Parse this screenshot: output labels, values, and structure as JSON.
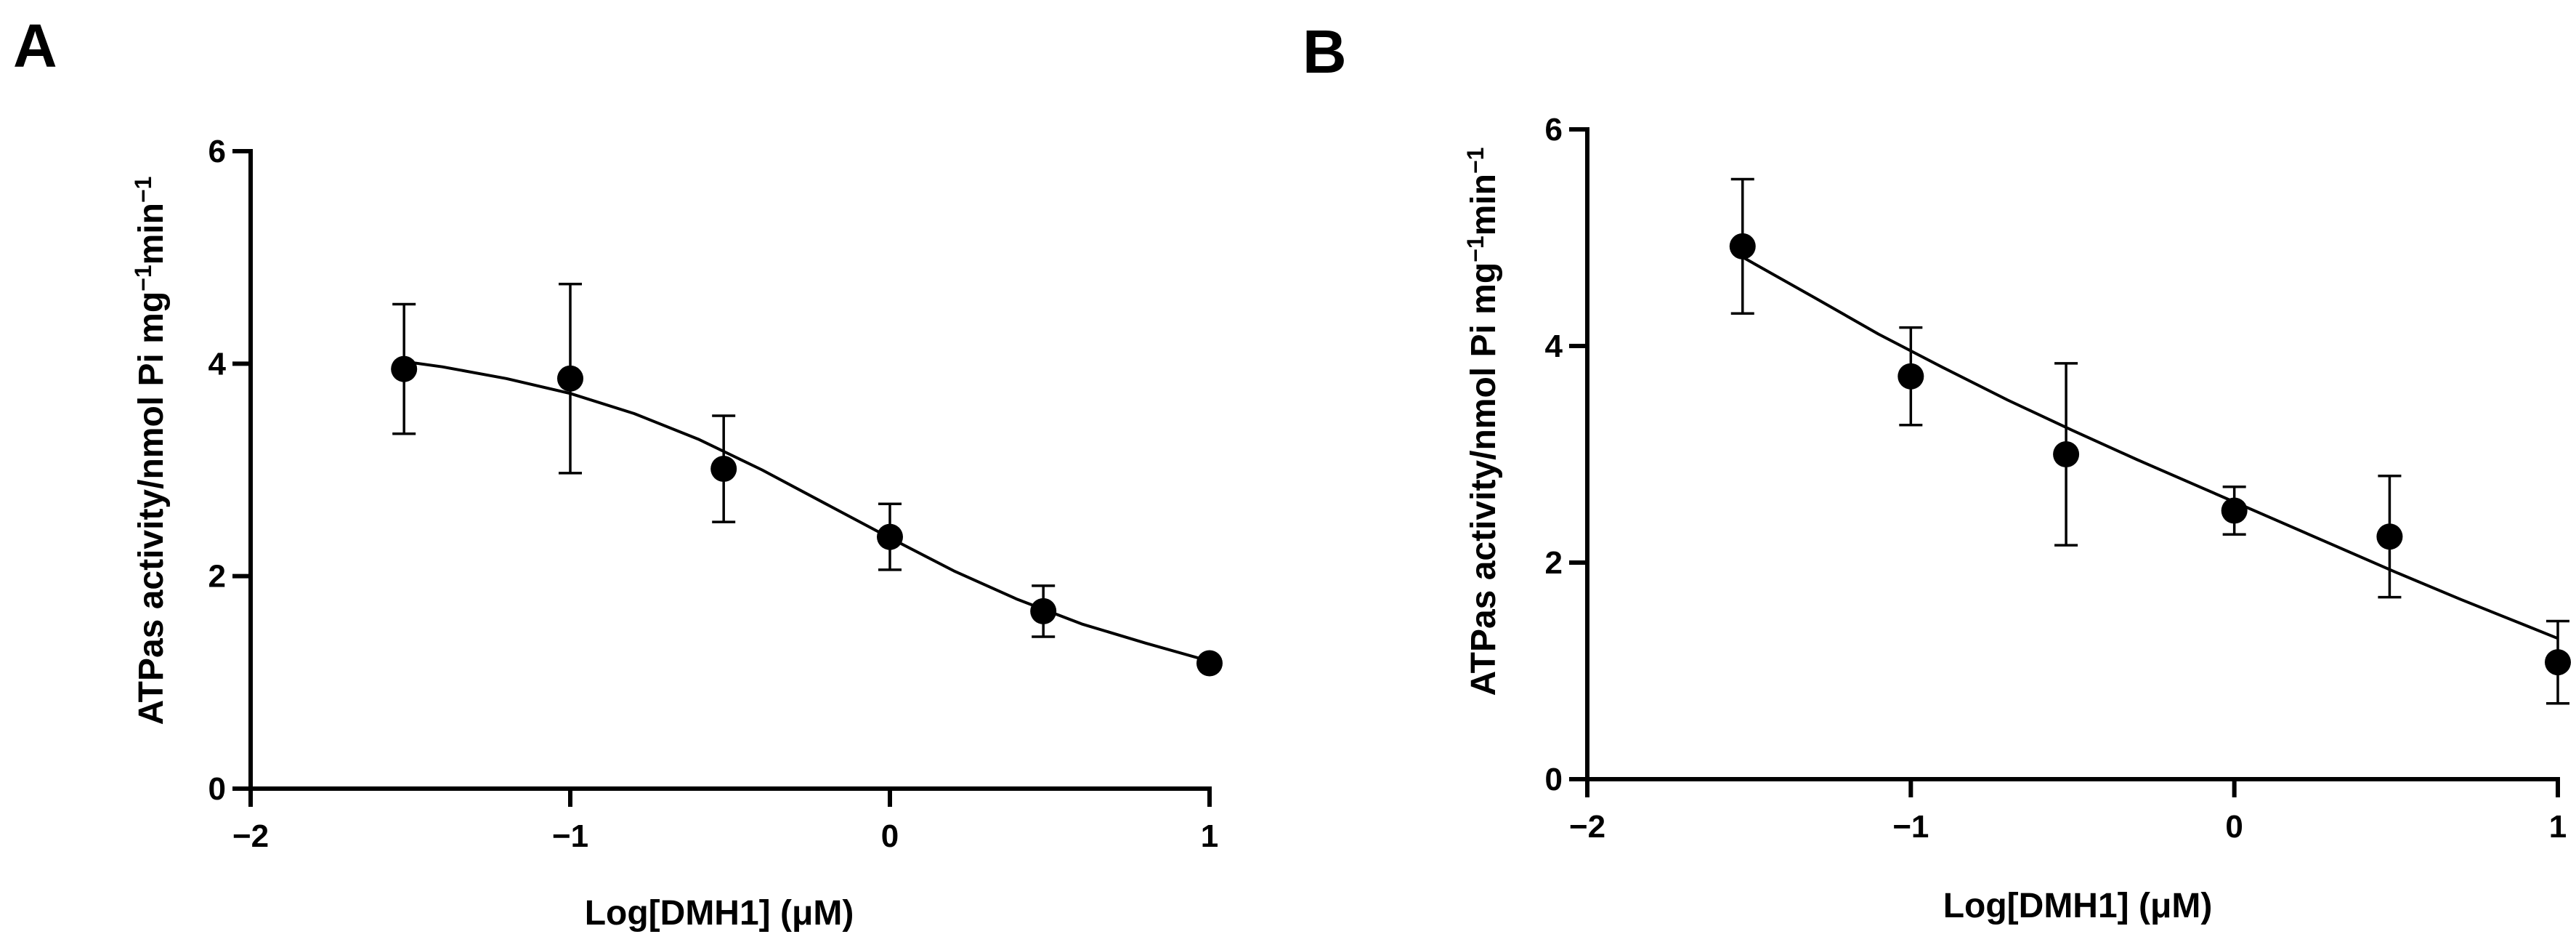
{
  "figure": {
    "panels": [
      "A",
      "B"
    ]
  },
  "colors": {
    "ink": "#000000",
    "background": "#ffffff"
  },
  "chart_data": [
    {
      "id": "A",
      "type": "scatter",
      "panel_label": "A",
      "title": "",
      "xlabel": "Log[DMH1] (μM)",
      "ylabel": "ATPas activity/nmol Pi mg",
      "ylabel_sup1": "−1",
      "ylabel_mid": "min",
      "ylabel_sup2": "−1",
      "xlim": [
        -2,
        1
      ],
      "ylim": [
        0,
        6
      ],
      "xticks": [
        -2,
        -1,
        0,
        1
      ],
      "xtick_labels": [
        "−2",
        "−1",
        "0",
        "1"
      ],
      "yticks": [
        0,
        2,
        4,
        6
      ],
      "ytick_labels": [
        "0",
        "2",
        "4",
        "6"
      ],
      "grid": false,
      "series": [
        {
          "name": "ATPase activity",
          "x": [
            -1.52,
            -1.0,
            -0.52,
            0.0,
            0.48,
            1.0
          ],
          "y": [
            3.95,
            3.86,
            3.01,
            2.37,
            1.67,
            1.18
          ],
          "err_low": [
            0.61,
            0.89,
            0.5,
            0.31,
            0.24,
            0.0
          ],
          "err_high": [
            0.61,
            0.89,
            0.5,
            0.31,
            0.24,
            0.0
          ]
        }
      ],
      "fit": {
        "type": "sigmoidal dose-response",
        "x": [
          -1.52,
          -1.4,
          -1.2,
          -1.0,
          -0.8,
          -0.6,
          -0.4,
          -0.2,
          0.0,
          0.2,
          0.4,
          0.6,
          0.8,
          1.0
        ],
        "y": [
          4.02,
          3.97,
          3.86,
          3.72,
          3.53,
          3.29,
          3.0,
          2.68,
          2.36,
          2.05,
          1.78,
          1.55,
          1.37,
          1.2
        ]
      }
    },
    {
      "id": "B",
      "type": "scatter",
      "panel_label": "B",
      "title": "",
      "xlabel": "Log[DMH1] (μM)",
      "ylabel": "ATPas activity/nmol Pi mg",
      "ylabel_sup1": "−1",
      "ylabel_mid": "min",
      "ylabel_sup2": "−1",
      "xlim": [
        -2,
        1
      ],
      "ylim": [
        0,
        6
      ],
      "xticks": [
        -2,
        -1,
        0,
        1
      ],
      "xtick_labels": [
        "−2",
        "−1",
        "0",
        "1"
      ],
      "yticks": [
        0,
        2,
        4,
        6
      ],
      "ytick_labels": [
        "0",
        "2",
        "4",
        "6"
      ],
      "grid": false,
      "series": [
        {
          "name": "ATPase activity",
          "x": [
            -1.52,
            -1.0,
            -0.52,
            0.0,
            0.48,
            1.0
          ],
          "y": [
            4.92,
            3.72,
            3.0,
            2.48,
            2.24,
            1.08
          ],
          "err_low": [
            0.62,
            0.45,
            0.84,
            0.22,
            0.56,
            0.38
          ],
          "err_high": [
            0.62,
            0.45,
            0.84,
            0.22,
            0.56,
            0.38
          ]
        }
      ],
      "fit": {
        "type": "sigmoidal dose-response",
        "x": [
          -1.52,
          -1.3,
          -1.1,
          -0.9,
          -0.7,
          -0.5,
          -0.3,
          -0.1,
          0.1,
          0.3,
          0.5,
          0.7,
          0.9,
          1.0
        ],
        "y": [
          4.82,
          4.45,
          4.11,
          3.8,
          3.5,
          3.22,
          2.95,
          2.69,
          2.43,
          2.17,
          1.91,
          1.66,
          1.42,
          1.3
        ]
      }
    }
  ]
}
